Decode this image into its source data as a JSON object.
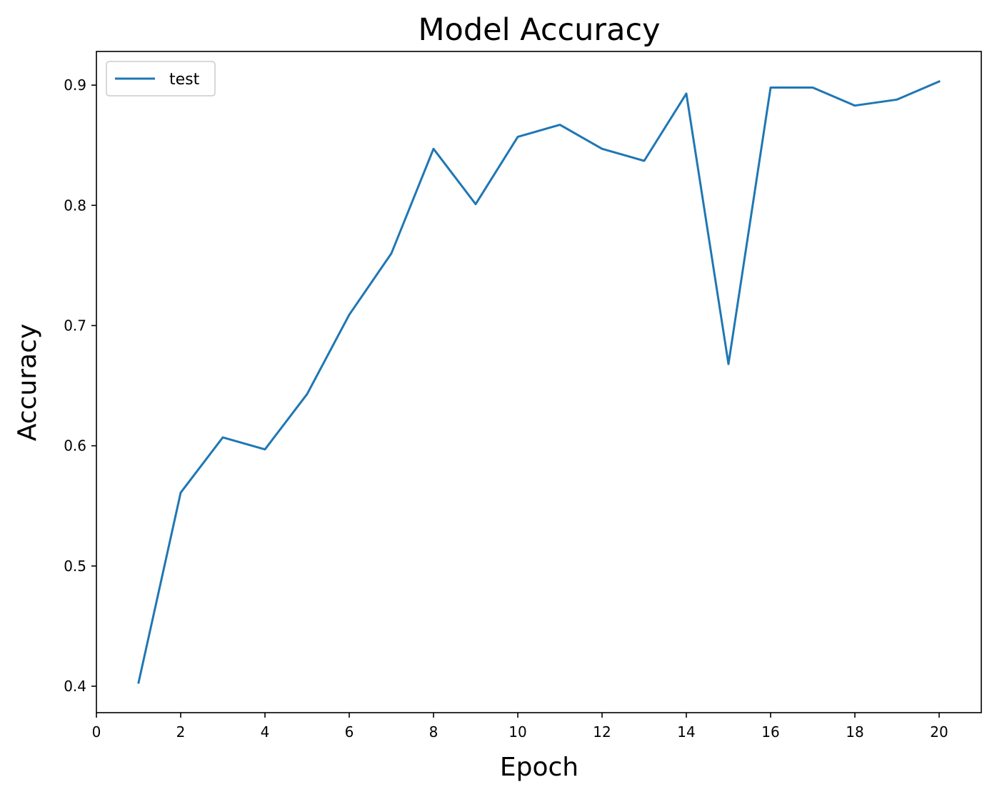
{
  "chart_data": {
    "type": "line",
    "title": "Model Accuracy",
    "xlabel": "Epoch",
    "ylabel": "Accuracy",
    "xlim": [
      0,
      21
    ],
    "ylim": [
      0.378,
      0.928
    ],
    "xticks": [
      0,
      2,
      4,
      6,
      8,
      10,
      12,
      14,
      16,
      18,
      20
    ],
    "yticks": [
      0.4,
      0.5,
      0.6,
      0.7,
      0.8,
      0.9
    ],
    "grid": false,
    "legend_position": "upper-left",
    "series": [
      {
        "name": "test",
        "color": "#1f77b4",
        "x": [
          1,
          2,
          3,
          4,
          5,
          6,
          7,
          8,
          9,
          10,
          11,
          12,
          13,
          14,
          15,
          16,
          17,
          18,
          19,
          20
        ],
        "y": [
          0.403,
          0.561,
          0.607,
          0.597,
          0.643,
          0.709,
          0.76,
          0.847,
          0.801,
          0.857,
          0.867,
          0.847,
          0.837,
          0.893,
          0.668,
          0.898,
          0.898,
          0.883,
          0.888,
          0.903
        ]
      }
    ]
  }
}
